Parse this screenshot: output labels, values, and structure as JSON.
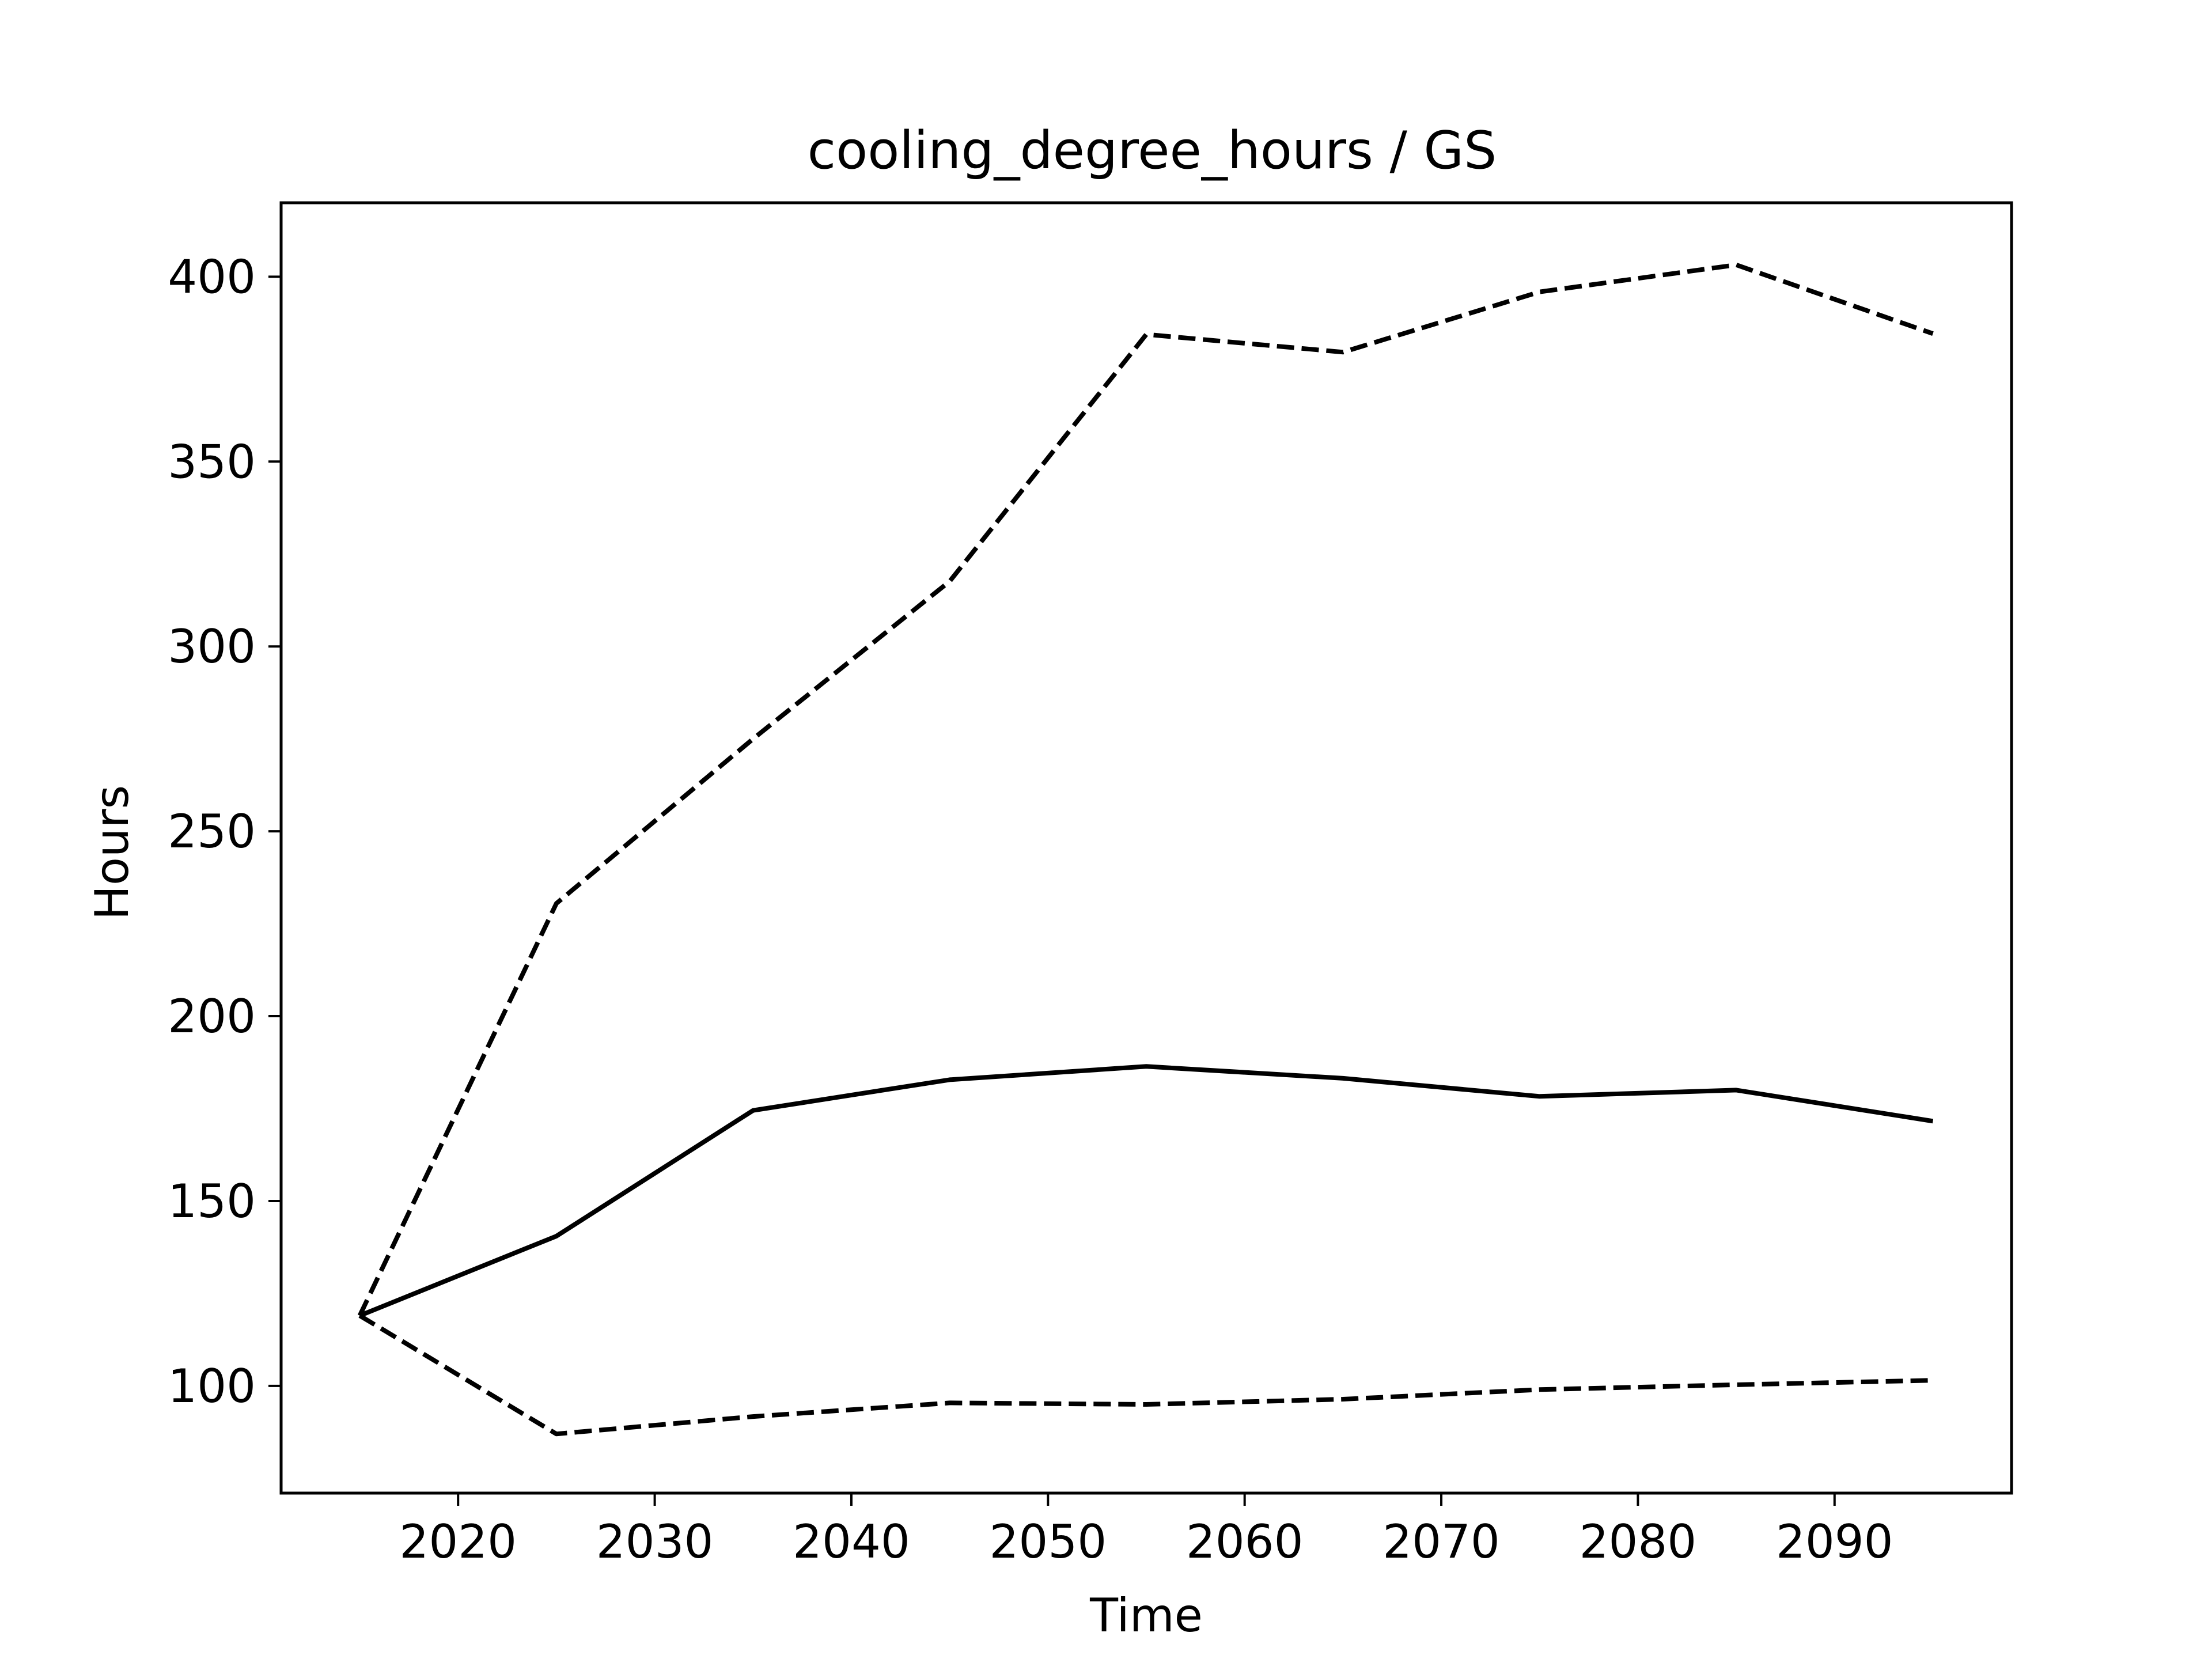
{
  "chart_data": {
    "type": "line",
    "title": "cooling_degree_hours / GS",
    "xlabel": "Time",
    "ylabel": "Hours",
    "xlim": [
      2011,
      2099
    ],
    "ylim": [
      71,
      420
    ],
    "xticks": [
      2020,
      2030,
      2040,
      2050,
      2060,
      2070,
      2080,
      2090
    ],
    "yticks": [
      100,
      150,
      200,
      250,
      300,
      350,
      400
    ],
    "grid": false,
    "legend": "none",
    "x": [
      2015,
      2025,
      2035,
      2045,
      2055,
      2065,
      2075,
      2085,
      2095
    ],
    "series": [
      {
        "style": "solid",
        "color": "#000000",
        "values": [
          119,
          140.5,
          174.5,
          182.8,
          186.4,
          183.2,
          178.3,
          180,
          171.6
        ]
      },
      {
        "style": "dashed",
        "color": "#000000",
        "values": [
          119,
          230.5,
          275,
          317.6,
          384.4,
          379.6,
          395.9,
          403.2,
          384.6
        ]
      },
      {
        "style": "dashed",
        "color": "#000000",
        "values": [
          119,
          87,
          91.7,
          95.4,
          95,
          96.4,
          99,
          100.3,
          101.5
        ]
      }
    ]
  }
}
